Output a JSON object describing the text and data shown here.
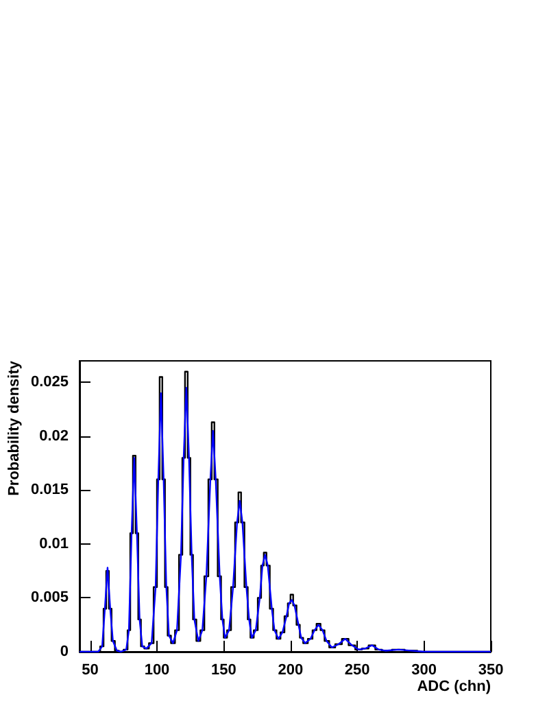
{
  "chart_data": {
    "type": "step",
    "xlabel": "ADC (chn)",
    "ylabel": "Probability density",
    "xlim": [
      42,
      350
    ],
    "ylim": [
      0,
      0.027
    ],
    "xticks": [
      50,
      100,
      150,
      200,
      250,
      300,
      350
    ],
    "yticks": [
      0,
      0.005,
      0.01,
      0.015,
      0.02,
      0.025
    ],
    "grid": false,
    "marker": "none",
    "x": [
      42,
      56,
      59,
      61,
      63,
      65,
      67,
      70,
      73,
      77,
      79,
      81,
      83,
      85,
      87,
      89,
      92,
      96,
      99,
      101,
      103,
      105,
      107,
      109,
      112,
      115,
      118,
      120,
      122,
      124,
      126,
      128,
      131,
      134,
      137,
      140,
      142,
      144,
      147,
      149,
      151,
      154,
      157,
      160,
      162,
      164,
      167,
      169,
      171,
      174,
      177,
      179,
      181,
      183,
      186,
      188,
      191,
      194,
      197,
      199,
      201,
      203,
      206,
      208,
      211,
      215,
      218,
      221,
      224,
      227,
      231,
      236,
      241,
      246,
      251,
      256,
      261,
      266,
      271,
      281,
      290,
      300,
      350
    ],
    "series": [
      {
        "color": "#000000",
        "values": [
          0,
          0,
          0.0005,
          0.004,
          0.0075,
          0.004,
          0.001,
          0.0001,
          0,
          0.0002,
          0.002,
          0.011,
          0.0182,
          0.011,
          0.003,
          0.0005,
          0.0003,
          0.0008,
          0.006,
          0.016,
          0.0255,
          0.016,
          0.006,
          0.0015,
          0.0008,
          0.002,
          0.009,
          0.018,
          0.026,
          0.018,
          0.009,
          0.003,
          0.001,
          0.002,
          0.007,
          0.016,
          0.0213,
          0.016,
          0.007,
          0.003,
          0.0013,
          0.002,
          0.006,
          0.012,
          0.0148,
          0.012,
          0.006,
          0.003,
          0.0013,
          0.002,
          0.005,
          0.008,
          0.0092,
          0.008,
          0.004,
          0.002,
          0.0012,
          0.0018,
          0.0033,
          0.0045,
          0.0053,
          0.0043,
          0.0025,
          0.0013,
          0.0008,
          0.0012,
          0.002,
          0.0026,
          0.002,
          0.001,
          0.0004,
          0.0007,
          0.0012,
          0.0006,
          0.0002,
          0.0003,
          0.0006,
          0.0002,
          0.0001,
          0.0002,
          0.0001,
          0,
          0
        ]
      },
      {
        "type": "line",
        "color": "#0000ff",
        "values": [
          0,
          0,
          0.0005,
          0.004,
          0.0078,
          0.004,
          0.001,
          0.0001,
          0,
          0.0002,
          0.002,
          0.011,
          0.018,
          0.011,
          0.003,
          0.0005,
          0.0003,
          0.0008,
          0.006,
          0.016,
          0.024,
          0.016,
          0.006,
          0.0015,
          0.0008,
          0.002,
          0.009,
          0.018,
          0.0245,
          0.018,
          0.009,
          0.003,
          0.001,
          0.002,
          0.007,
          0.016,
          0.0205,
          0.016,
          0.007,
          0.003,
          0.0013,
          0.002,
          0.006,
          0.012,
          0.014,
          0.012,
          0.006,
          0.003,
          0.0013,
          0.002,
          0.005,
          0.008,
          0.009,
          0.008,
          0.004,
          0.002,
          0.0012,
          0.0018,
          0.0033,
          0.0045,
          0.0048,
          0.0043,
          0.0025,
          0.0013,
          0.0008,
          0.0012,
          0.002,
          0.0025,
          0.002,
          0.001,
          0.0004,
          0.0007,
          0.0012,
          0.0006,
          0.0002,
          0.0003,
          0.0006,
          0.0002,
          0.0001,
          0.0002,
          0.0001,
          0,
          0
        ]
      }
    ]
  }
}
